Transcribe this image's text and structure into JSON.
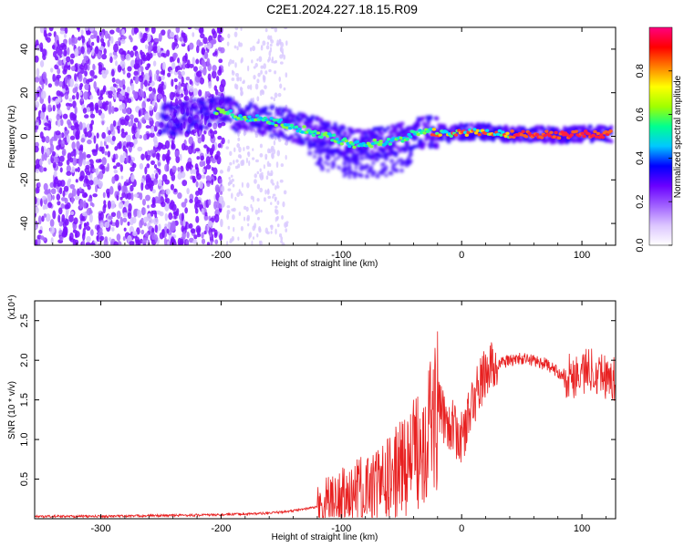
{
  "title": "C2E1.2024.227.18.15.R09",
  "chart_data": [
    {
      "type": "heatmap",
      "xlabel": "Height of straight line (km)",
      "ylabel": "Frequency (Hz)",
      "xlim": [
        -355,
        128
      ],
      "ylim": [
        -50,
        50
      ],
      "x_ticks": [
        -300,
        -200,
        -100,
        0,
        100
      ],
      "y_ticks": [
        -40,
        -20,
        0,
        20,
        40
      ],
      "colorbar": {
        "label": "Normalized spectral amplitude",
        "range": [
          0,
          1
        ],
        "ticks": [
          0.0,
          0.2,
          0.4,
          0.6,
          0.8
        ],
        "tick_labels": [
          "0.0",
          "0.2",
          "0.4",
          "0.6",
          "0.8"
        ],
        "colors": [
          "#ffffff",
          "#dcc6ff",
          "#a060ff",
          "#6a00ff",
          "#0000ff",
          "#00c8ff",
          "#00ff90",
          "#a0ff00",
          "#ffff00",
          "#ff8000",
          "#ff0000",
          "#ff0080"
        ]
      },
      "ridge": {
        "x": [
          -250,
          -235,
          -220,
          -200,
          -185,
          -170,
          -150,
          -130,
          -110,
          -90,
          -70,
          -55,
          -40,
          -25,
          -10,
          0,
          20,
          40,
          60,
          80,
          100,
          125
        ],
        "y": [
          8,
          8,
          10,
          12,
          9,
          8,
          6,
          3,
          0,
          -4,
          -3,
          -2,
          1,
          2,
          1,
          2,
          2,
          1,
          1,
          0.5,
          1,
          1
        ]
      }
    },
    {
      "type": "line",
      "xlabel": "Height of straight line (km)",
      "ylabel": "SNR (10 * v/v)",
      "y_multiplier": "(x10⁴)",
      "xlim": [
        -355,
        128
      ],
      "ylim": [
        0,
        2.75
      ],
      "x_ticks": [
        -300,
        -200,
        -100,
        0,
        100
      ],
      "y_ticks": [
        0.5,
        1.0,
        1.5,
        2.0,
        2.5
      ],
      "y_tick_labels": [
        "0.5",
        "1.0",
        "1.5",
        "2.0",
        "2.5"
      ],
      "color": "#e82020",
      "x": [
        -355,
        -300,
        -250,
        -200,
        -180,
        -160,
        -140,
        -120,
        -100,
        -80,
        -60,
        -40,
        -30,
        -20,
        -10,
        0,
        10,
        20,
        30,
        40,
        50,
        60,
        70,
        80,
        90,
        100,
        110,
        120,
        128
      ],
      "y": [
        0.03,
        0.03,
        0.04,
        0.05,
        0.06,
        0.07,
        0.1,
        0.15,
        0.25,
        0.35,
        0.5,
        0.8,
        1.1,
        1.4,
        1.2,
        1.0,
        1.5,
        1.85,
        1.95,
        2.0,
        2.02,
        2.0,
        1.95,
        1.85,
        1.8,
        1.85,
        1.9,
        1.8,
        1.75
      ]
    }
  ]
}
